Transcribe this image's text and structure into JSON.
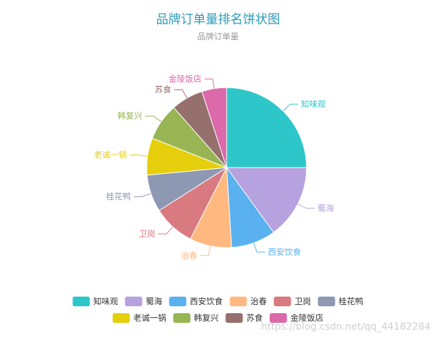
{
  "chart_data": {
    "type": "pie",
    "title": "品牌订单量排名饼状图",
    "subtitle": "品牌订单量",
    "legend_position": "bottom",
    "slices": [
      {
        "name": "知味观",
        "value": 25,
        "color": "#2ec7c9"
      },
      {
        "name": "蜀海",
        "value": 15,
        "color": "#b6a2de"
      },
      {
        "name": "西安饮食",
        "value": 9,
        "color": "#5ab1ef"
      },
      {
        "name": "治春",
        "value": 8.5,
        "color": "#ffb980"
      },
      {
        "name": "卫岗",
        "value": 8.5,
        "color": "#d87a80"
      },
      {
        "name": "桂花鸭",
        "value": 7.5,
        "color": "#8d98b3"
      },
      {
        "name": "老诚一锅",
        "value": 7.5,
        "color": "#e5cf0d"
      },
      {
        "name": "韩复兴",
        "value": 7.5,
        "color": "#97b552"
      },
      {
        "name": "苏食",
        "value": 6.5,
        "color": "#95706d"
      },
      {
        "name": "金陵饭店",
        "value": 5,
        "color": "#dc69aa"
      }
    ]
  },
  "watermark": "https://blog.csdn.net/qq_44182284"
}
